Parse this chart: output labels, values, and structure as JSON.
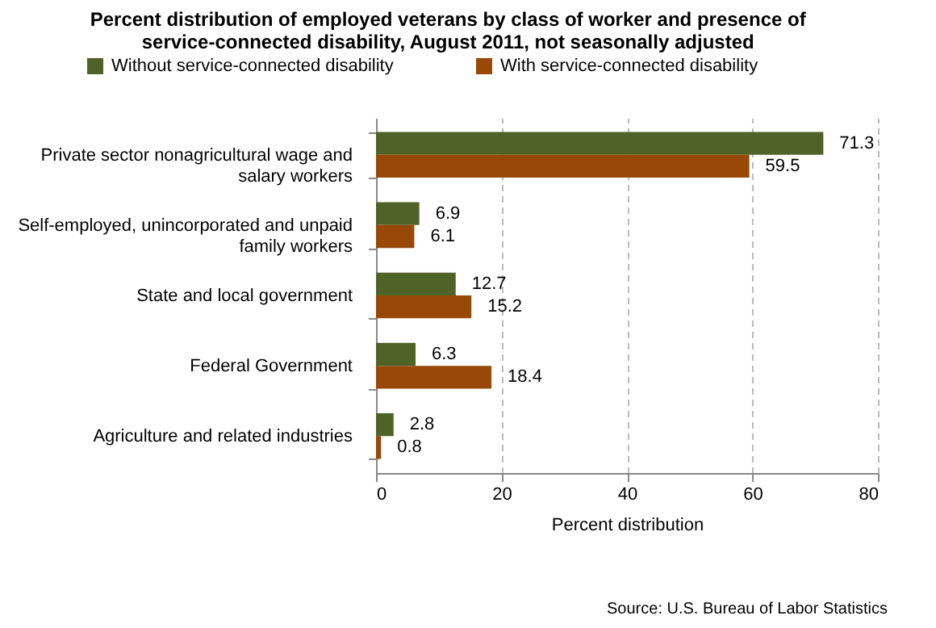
{
  "chart_data": {
    "type": "bar",
    "orientation": "horizontal",
    "title": "Percent distribution of employed veterans by class of worker and presence of service-connected disability, August 2011, not seasonally adjusted",
    "categories": [
      "Private sector nonagricultural wage and salary workers",
      "Self-employed, unincorporated and unpaid family workers",
      "State and local government",
      "Federal Government",
      "Agriculture and related industries"
    ],
    "series": [
      {
        "name": "Without service-connected disability",
        "color": "#4f6228",
        "values": [
          71.3,
          6.9,
          12.7,
          6.3,
          2.8
        ]
      },
      {
        "name": "With service-connected disability",
        "color": "#984807",
        "values": [
          59.5,
          6.1,
          15.2,
          18.4,
          0.8
        ]
      }
    ],
    "xlabel": "Percent distribution",
    "xlim": [
      0,
      80
    ],
    "xticks": [
      0,
      20,
      40,
      60,
      80
    ],
    "grid": "x",
    "legend": "top",
    "data_labels": true,
    "annotations": [
      "Source: U.S. Bureau of Labor Statistics"
    ]
  }
}
